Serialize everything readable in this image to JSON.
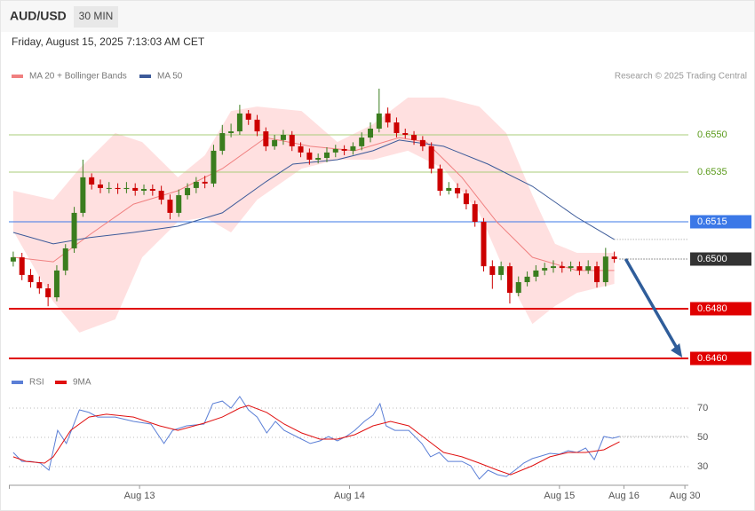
{
  "header": {
    "symbol": "AUD/USD",
    "interval": "30 MIN",
    "timestamp": "Friday, August 15, 2025 7:13:03 AM CET"
  },
  "chart_data": [
    {
      "type": "candlestick",
      "credit": "Research © 2025 Trading Central",
      "up_color": "#3a7d1e",
      "down_color": "#cc0000",
      "xlim": [
        -0.5,
        77.5
      ],
      "ylim": [
        0.6456,
        0.658
      ],
      "open": [
        0.6499,
        0.65007,
        0.64936,
        0.64907,
        0.64882,
        0.64846,
        0.64954,
        0.65043,
        0.65186,
        0.65329,
        0.653,
        0.65286,
        0.65286,
        0.65282,
        0.65286,
        0.65275,
        0.65282,
        0.65275,
        0.65239,
        0.65186,
        0.65257,
        0.65286,
        0.65311,
        0.65304,
        0.65436,
        0.65507,
        0.65514,
        0.65586,
        0.65561,
        0.65514,
        0.65454,
        0.65479,
        0.655,
        0.65454,
        0.65429,
        0.654,
        0.65407,
        0.65429,
        0.65443,
        0.65436,
        0.65454,
        0.65489,
        0.65525,
        0.65586,
        0.6555,
        0.65507,
        0.655,
        0.65479,
        0.65454,
        0.65364,
        0.65275,
        0.65286,
        0.65264,
        0.65221,
        0.6515,
        0.64971,
        0.64936,
        0.64971,
        0.64864,
        0.64907,
        0.64929,
        0.64954,
        0.64964,
        0.64971,
        0.64964,
        0.64971,
        0.64954,
        0.64971,
        0.64907,
        0.6501
      ],
      "high": [
        0.6503,
        0.65025,
        0.6496,
        0.6493,
        0.649,
        0.64975,
        0.6506,
        0.6521,
        0.654,
        0.65345,
        0.6532,
        0.6531,
        0.65305,
        0.6531,
        0.65305,
        0.653,
        0.653,
        0.65295,
        0.6526,
        0.6528,
        0.65305,
        0.6533,
        0.65335,
        0.6546,
        0.6554,
        0.65545,
        0.65621,
        0.656,
        0.6558,
        0.6553,
        0.655,
        0.6552,
        0.65515,
        0.6547,
        0.65445,
        0.65425,
        0.6545,
        0.6546,
        0.65458,
        0.6547,
        0.6551,
        0.6555,
        0.65686,
        0.6561,
        0.6557,
        0.65525,
        0.65515,
        0.65495,
        0.6547,
        0.6538,
        0.6531,
        0.65305,
        0.6528,
        0.65235,
        0.65165,
        0.64995,
        0.6499,
        0.64985,
        0.6493,
        0.6495,
        0.64975,
        0.64985,
        0.64995,
        0.6499,
        0.6499,
        0.6499,
        0.64995,
        0.6499,
        0.65045,
        0.6503
      ],
      "low": [
        0.6497,
        0.64915,
        0.64885,
        0.6486,
        0.6481,
        0.6483,
        0.64935,
        0.65025,
        0.6517,
        0.6528,
        0.65265,
        0.65265,
        0.65262,
        0.65265,
        0.65255,
        0.65258,
        0.65255,
        0.6522,
        0.6516,
        0.6517,
        0.6524,
        0.65265,
        0.65285,
        0.6529,
        0.6542,
        0.6549,
        0.655,
        0.6554,
        0.65495,
        0.65435,
        0.6544,
        0.6546,
        0.65435,
        0.6541,
        0.6538,
        0.65385,
        0.6539,
        0.6541,
        0.65418,
        0.6542,
        0.65438,
        0.6547,
        0.6551,
        0.6553,
        0.6549,
        0.65485,
        0.6546,
        0.65435,
        0.65345,
        0.65255,
        0.6526,
        0.65245,
        0.652,
        0.6513,
        0.6495,
        0.6488,
        0.64915,
        0.64821,
        0.6485,
        0.6489,
        0.6491,
        0.64935,
        0.64945,
        0.64945,
        0.6495,
        0.64935,
        0.6494,
        0.64885,
        0.6489,
        0.64985
      ],
      "close": [
        0.65007,
        0.64936,
        0.64907,
        0.64882,
        0.64846,
        0.64954,
        0.65043,
        0.65186,
        0.65329,
        0.653,
        0.65286,
        0.65286,
        0.65282,
        0.65286,
        0.65275,
        0.65282,
        0.65275,
        0.65239,
        0.65186,
        0.65257,
        0.65286,
        0.65311,
        0.65304,
        0.65436,
        0.65507,
        0.65514,
        0.65586,
        0.65561,
        0.65514,
        0.65454,
        0.65479,
        0.655,
        0.65454,
        0.65429,
        0.654,
        0.65407,
        0.65429,
        0.65443,
        0.65436,
        0.65454,
        0.65489,
        0.65525,
        0.65586,
        0.6555,
        0.65507,
        0.655,
        0.65479,
        0.65454,
        0.65364,
        0.65275,
        0.65286,
        0.65264,
        0.65221,
        0.6515,
        0.64971,
        0.64936,
        0.64971,
        0.64864,
        0.64907,
        0.64929,
        0.64954,
        0.64964,
        0.64971,
        0.64964,
        0.64971,
        0.64954,
        0.64971,
        0.64907,
        0.6501,
        0.65
      ],
      "band": {
        "color": "#ffe0e0",
        "x": [
          0,
          4.6,
          7.6,
          11.7,
          14.8,
          18.9,
          22,
          25,
          28,
          33.1,
          37.2,
          41.3,
          45.3,
          49.4,
          53.5,
          56.6,
          59.6,
          62.2,
          64.7,
          69
        ],
        "upper": [
          0.65275,
          0.65239,
          0.65364,
          0.65507,
          0.65471,
          0.65329,
          0.65418,
          0.65596,
          0.65614,
          0.65596,
          0.65471,
          0.65543,
          0.6565,
          0.6565,
          0.65614,
          0.65507,
          0.65257,
          0.65061,
          0.65025,
          0.65025
        ],
        "lower": [
          0.65114,
          0.64829,
          0.64704,
          0.64757,
          0.65007,
          0.6515,
          0.65168,
          0.65107,
          0.65239,
          0.65364,
          0.654,
          0.654,
          0.65436,
          0.65364,
          0.65186,
          0.64936,
          0.64739,
          0.64811,
          0.64864,
          0.649
        ]
      },
      "series": [
        {
          "name": "MA 20 + Bollinger Bands",
          "color": "#f08080",
          "x": [
            0,
            4.6,
            8.7,
            13.8,
            18.9,
            24,
            29,
            34.1,
            39.2,
            44.3,
            47.4,
            51.5,
            55.5,
            59.6,
            64.7,
            69
          ],
          "values": [
            0.65007,
            0.64989,
            0.65096,
            0.65221,
            0.65275,
            0.65364,
            0.65489,
            0.65454,
            0.65436,
            0.65489,
            0.65471,
            0.65329,
            0.6515,
            0.65007,
            0.64954,
            0.64954
          ]
        },
        {
          "name": "MA 50",
          "color": "#3c5a99",
          "x": [
            0,
            4.6,
            8.7,
            13.8,
            18.9,
            24,
            29,
            32.1,
            37.2,
            41.3,
            44.3,
            49.4,
            54.5,
            59.6,
            64.7,
            69
          ],
          "values": [
            0.65107,
            0.65061,
            0.65086,
            0.65107,
            0.65132,
            0.65186,
            0.65311,
            0.65382,
            0.654,
            0.65436,
            0.65479,
            0.65454,
            0.65382,
            0.65293,
            0.65168,
            0.65079
          ]
        }
      ],
      "levels": [
        {
          "value": 0.655,
          "label": "0.6550",
          "color": "#a8cc7a",
          "text_color": "#5a9a1a",
          "boxed": false
        },
        {
          "value": 0.6535,
          "label": "0.6535",
          "color": "#a8cc7a",
          "text_color": "#5a9a1a",
          "boxed": false
        },
        {
          "value": 0.6515,
          "label": "0.6515",
          "color": "#3b78e7",
          "text_color": "#ffffff",
          "boxed": true
        },
        {
          "value": 0.65,
          "label": "0.6500",
          "color": "#333333",
          "text_color": "#ffffff",
          "boxed": true,
          "dotted": true
        },
        {
          "value": 0.648,
          "label": "0.6480",
          "color": "#e00000",
          "text_color": "#ffffff",
          "boxed": true
        },
        {
          "value": 0.646,
          "label": "0.6460",
          "color": "#e00000",
          "text_color": "#ffffff",
          "boxed": true
        }
      ]
    },
    {
      "type": "line",
      "xlim": [
        -0.5,
        77.5
      ],
      "ylim": [
        18,
        82
      ],
      "yticks": [
        30,
        50,
        70
      ],
      "xticks": [
        {
          "value": 14.5,
          "label": "Aug 13"
        },
        {
          "value": 38.6,
          "label": "Aug 14"
        },
        {
          "value": 62.7,
          "label": "Aug 15"
        },
        {
          "value": 70.1,
          "label": "Aug 16"
        },
        {
          "value": 77.1,
          "label": "Aug 30"
        }
      ],
      "series": [
        {
          "name": "RSI",
          "color": "#5b7fd6",
          "x": [
            0,
            1,
            2,
            3.1,
            4.1,
            5.1,
            6.1,
            7.6,
            8.7,
            9.7,
            11.7,
            13.8,
            15.8,
            17.3,
            18.3,
            19.9,
            21.9,
            22.9,
            24,
            25,
            26,
            27,
            28,
            29.1,
            30.1,
            31.1,
            33.1,
            34.1,
            35.2,
            36.2,
            37.2,
            38.2,
            39.2,
            40.3,
            41.3,
            42.1,
            42.8,
            43.8,
            45.4,
            46.9,
            47.9,
            48.9,
            49.9,
            51.5,
            52.5,
            53.5,
            54.5,
            55.6,
            56.6,
            57.6,
            58.6,
            59.6,
            60.6,
            61.6,
            62.7,
            63.7,
            64.7,
            65.7,
            66.7,
            67.8,
            68.8,
            69.6
          ],
          "values": [
            39.7,
            33.6,
            33.6,
            32.4,
            27.6,
            54.8,
            45.8,
            68.8,
            67,
            63.9,
            63.9,
            60.9,
            59.1,
            45.8,
            54.8,
            57.9,
            59.1,
            73,
            74.8,
            70,
            77.9,
            68.8,
            63.9,
            53,
            60.9,
            54.8,
            48.8,
            45.8,
            47.6,
            50.6,
            47.6,
            50.6,
            54.8,
            60.9,
            65.2,
            73,
            57.9,
            54.8,
            54.8,
            45.8,
            36.7,
            39.7,
            33.6,
            33.6,
            30.6,
            21.5,
            27.6,
            24.5,
            23.3,
            27.6,
            32.4,
            35.5,
            37.3,
            39.1,
            38.5,
            40.9,
            39.7,
            42.7,
            34.8,
            50.6,
            49.4,
            50.6
          ]
        },
        {
          "name": "9MA",
          "color": "#e01010",
          "x": [
            0,
            1.5,
            3.6,
            4.6,
            6.6,
            8.7,
            10.7,
            13.8,
            16.8,
            18.9,
            21.9,
            24,
            26,
            27,
            29.1,
            31.1,
            33.1,
            35.2,
            37.2,
            39.2,
            41.3,
            43.3,
            45.4,
            47.4,
            49.4,
            51.5,
            53.5,
            55.6,
            57.1,
            59.6,
            61.6,
            63.7,
            65.7,
            67.8,
            69.6
          ],
          "values": [
            36.7,
            33.6,
            32.4,
            36.7,
            54.8,
            63.9,
            65.8,
            63.9,
            57.9,
            54.8,
            59.7,
            63.9,
            70,
            71.8,
            67,
            59.1,
            53,
            48.8,
            48.8,
            51.8,
            57.9,
            60.9,
            57.9,
            48.8,
            39.7,
            36.7,
            32.4,
            27.6,
            24.5,
            30.6,
            36.7,
            39.7,
            39.7,
            41.5,
            47
          ]
        }
      ]
    }
  ]
}
